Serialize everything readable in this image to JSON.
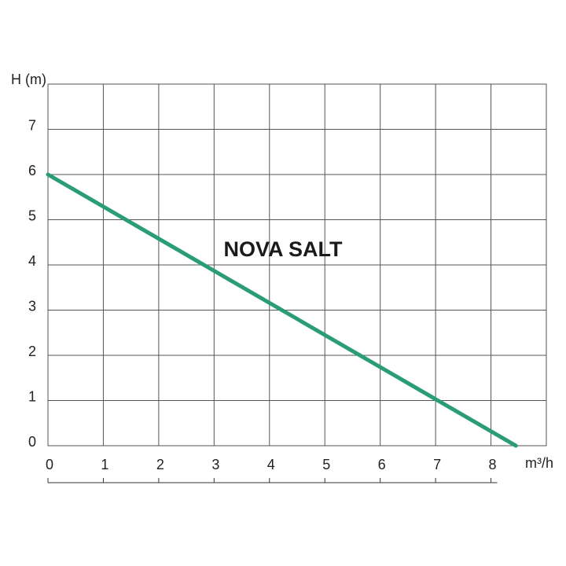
{
  "chart_data": {
    "type": "line",
    "annotation": "NOVA SALT",
    "y_label": "H (m)",
    "x_label": "m³/h",
    "x": [
      0,
      8.45
    ],
    "series": [
      {
        "color": "#2a9d78",
        "values": [
          6,
          0
        ]
      }
    ],
    "xlim": [
      0,
      9
    ],
    "ylim": [
      0,
      8
    ],
    "xticks": [
      0,
      1,
      2,
      3,
      4,
      5,
      6,
      7,
      8
    ],
    "yticks": [
      0,
      1,
      2,
      3,
      4,
      5,
      6,
      7
    ],
    "grid": true
  }
}
